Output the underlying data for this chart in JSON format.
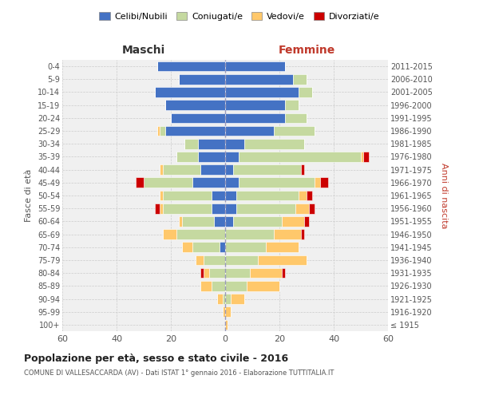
{
  "age_groups": [
    "100+",
    "95-99",
    "90-94",
    "85-89",
    "80-84",
    "75-79",
    "70-74",
    "65-69",
    "60-64",
    "55-59",
    "50-54",
    "45-49",
    "40-44",
    "35-39",
    "30-34",
    "25-29",
    "20-24",
    "15-19",
    "10-14",
    "5-9",
    "0-4"
  ],
  "birth_years": [
    "≤ 1915",
    "1916-1920",
    "1921-1925",
    "1926-1930",
    "1931-1935",
    "1936-1940",
    "1941-1945",
    "1946-1950",
    "1951-1955",
    "1956-1960",
    "1961-1965",
    "1966-1970",
    "1971-1975",
    "1976-1980",
    "1981-1985",
    "1986-1990",
    "1991-1995",
    "1996-2000",
    "2001-2005",
    "2006-2010",
    "2011-2015"
  ],
  "maschi_celibi": [
    0,
    0,
    0,
    0,
    0,
    0,
    2,
    0,
    4,
    5,
    5,
    12,
    9,
    10,
    10,
    22,
    20,
    22,
    26,
    17,
    25
  ],
  "maschi_coniugati": [
    0,
    0,
    1,
    5,
    6,
    8,
    10,
    18,
    12,
    18,
    18,
    18,
    14,
    8,
    5,
    2,
    0,
    0,
    0,
    0,
    0
  ],
  "maschi_vedovi": [
    0,
    1,
    2,
    4,
    2,
    3,
    4,
    5,
    1,
    1,
    1,
    0,
    1,
    0,
    0,
    1,
    0,
    0,
    0,
    0,
    0
  ],
  "maschi_divorziati": [
    0,
    0,
    0,
    0,
    1,
    0,
    0,
    0,
    0,
    2,
    0,
    3,
    0,
    0,
    0,
    0,
    0,
    0,
    0,
    0,
    0
  ],
  "femmine_nubili": [
    0,
    0,
    0,
    0,
    0,
    0,
    0,
    0,
    3,
    4,
    4,
    5,
    3,
    5,
    7,
    18,
    22,
    22,
    27,
    25,
    22
  ],
  "femmine_coniugate": [
    0,
    0,
    2,
    8,
    9,
    12,
    15,
    18,
    18,
    22,
    23,
    28,
    25,
    45,
    22,
    15,
    8,
    5,
    5,
    5,
    0
  ],
  "femmine_vedove": [
    1,
    2,
    5,
    12,
    12,
    18,
    12,
    10,
    8,
    5,
    3,
    2,
    0,
    1,
    0,
    0,
    0,
    0,
    0,
    0,
    0
  ],
  "femmine_divorziate": [
    0,
    0,
    0,
    0,
    1,
    0,
    0,
    1,
    2,
    2,
    2,
    3,
    1,
    2,
    0,
    0,
    0,
    0,
    0,
    0,
    0
  ],
  "color_celibi": "#4472c4",
  "color_coniugati": "#c5d9a0",
  "color_vedovi": "#ffc86b",
  "color_divorziati": "#cc0000",
  "legend_labels": [
    "Celibi/Nubili",
    "Coniugati/e",
    "Vedovi/e",
    "Divorziati/e"
  ],
  "title": "Popolazione per età, sesso e stato civile - 2016",
  "subtitle": "COMUNE DI VALLESACCARDA (AV) - Dati ISTAT 1° gennaio 2016 - Elaborazione TUTTITALIA.IT",
  "label_maschi": "Maschi",
  "label_femmine": "Femmine",
  "label_fasce": "Fasce di età",
  "label_anni": "Anni di nascita",
  "xlim": 60,
  "bg_color": "#ffffff",
  "plot_bg": "#f0f0f0",
  "grid_color": "#cccccc"
}
